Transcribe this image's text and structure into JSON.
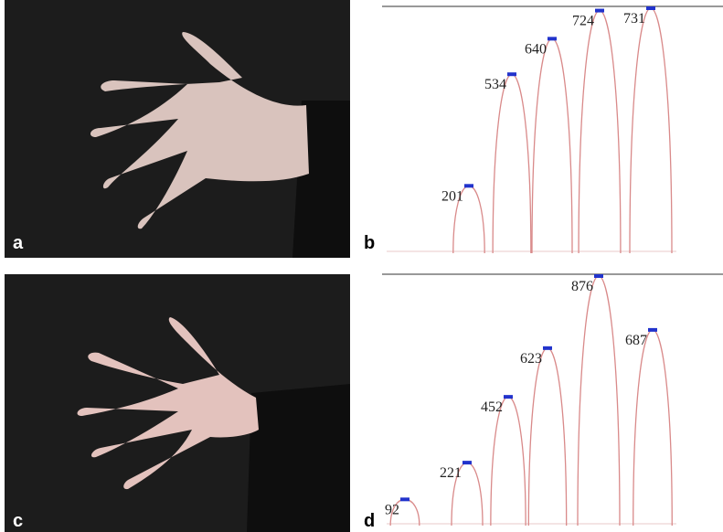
{
  "photos": [
    {
      "label": "a"
    },
    {
      "label": "c"
    }
  ],
  "chart_data": [
    {
      "type": "peaks",
      "label": "b",
      "values": [
        201,
        534,
        640,
        724,
        731
      ],
      "color": "#d98a8a",
      "marker_color": "#2233cc"
    },
    {
      "type": "peaks",
      "label": "d",
      "values": [
        92,
        221,
        452,
        623,
        876,
        687
      ],
      "color": "#d98a8a",
      "marker_color": "#2233cc"
    }
  ]
}
